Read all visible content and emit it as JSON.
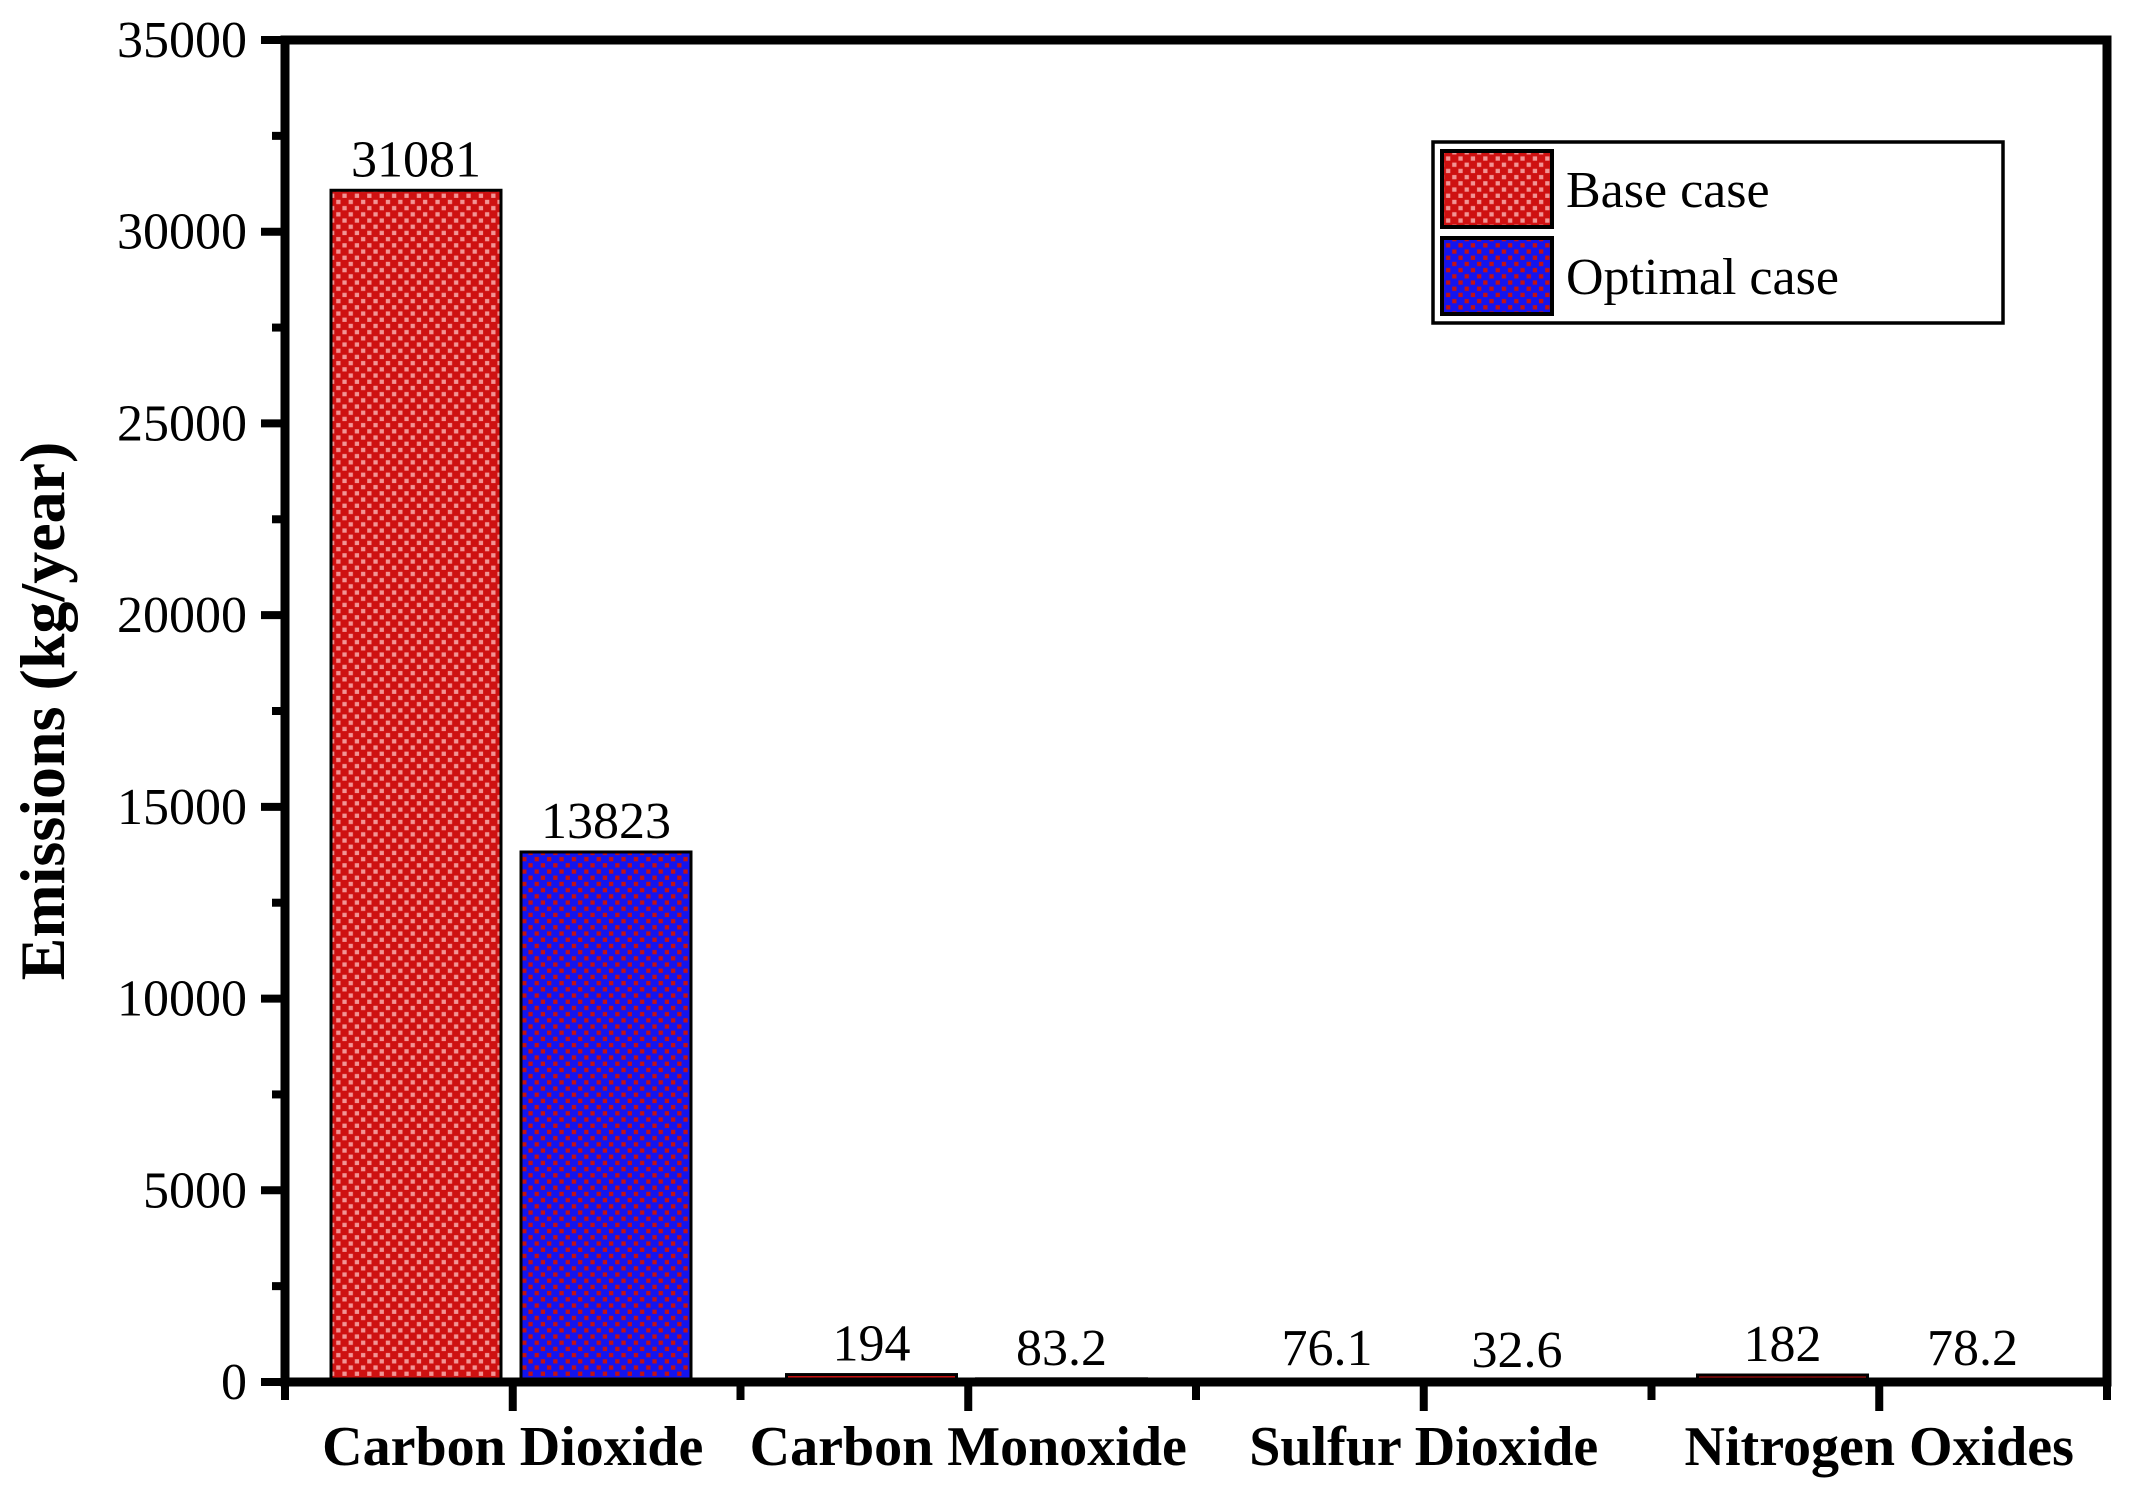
{
  "figure": {
    "background": "#ffffff",
    "axis_color": "#000000"
  },
  "y_axis": {
    "label": "Emissions (kg/year)",
    "tick_labels": [
      "0",
      "5000",
      "10000",
      "15000",
      "20000",
      "25000",
      "30000",
      "35000"
    ]
  },
  "legend": {
    "items": [
      {
        "label": "Base case",
        "fill": "#ce1111",
        "dot": "#f29494"
      },
      {
        "label": "Optimal case",
        "fill": "#1414ee",
        "dot": "#c21212"
      }
    ]
  },
  "chart_data": {
    "type": "bar",
    "title": "",
    "categories": [
      "Carbon Dioxide",
      "Carbon Monoxide",
      "Sulfur Dioxide",
      "Nitrogen Oxides"
    ],
    "series": [
      {
        "name": "Base case",
        "values": [
          31081,
          194,
          76.1,
          182
        ],
        "labels": [
          "31081",
          "194",
          "76.1",
          "182"
        ],
        "fill": "#ce1111",
        "dot_color": "#f29494"
      },
      {
        "name": "Optimal case",
        "values": [
          13823,
          83.2,
          32.6,
          78.2
        ],
        "labels": [
          "13823",
          "83.2",
          "32.6",
          "78.2"
        ],
        "fill": "#1414ee",
        "dot_color": "#c21212"
      }
    ],
    "xlabel": "",
    "ylabel": "Emissions (kg/year)",
    "ylim": [
      0,
      35000
    ],
    "ytick_major": 5000,
    "ytick_minor": 2500,
    "bar_outline": "#000000",
    "grid": false,
    "legend_position": "top-right"
  }
}
